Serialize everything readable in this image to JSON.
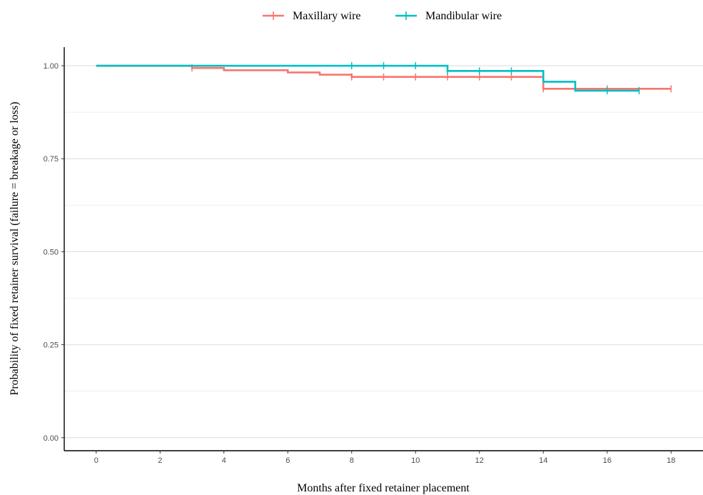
{
  "chart_data": {
    "type": "line",
    "subtype": "step",
    "title": "",
    "xlabel": "Months after fixed retainer placement",
    "ylabel": "Probability of fixed retainer survival (failure = breakage or loss)",
    "xlim": [
      -1,
      19
    ],
    "ylim": [
      -0.035,
      1.05
    ],
    "x_ticks": [
      0,
      2,
      4,
      6,
      8,
      10,
      12,
      14,
      16,
      18
    ],
    "x_tick_labels": [
      "0",
      "2",
      "4",
      "6",
      "8",
      "10",
      "12",
      "14",
      "16",
      "18"
    ],
    "y_ticks": [
      0,
      0.25,
      0.5,
      0.75,
      1
    ],
    "y_tick_labels": [
      "0.00",
      "0.25",
      "0.50",
      "0.75",
      "1.00"
    ],
    "y_minor_ticks": [
      0.125,
      0.375,
      0.625,
      0.875
    ],
    "grid": "horizontal",
    "legend_position": "top",
    "series": [
      {
        "name": "Maxillary wire",
        "color": "#F8766D",
        "steps": [
          {
            "x": 0,
            "y": 1.0
          },
          {
            "x": 3,
            "y": 0.994
          },
          {
            "x": 4,
            "y": 0.988
          },
          {
            "x": 6,
            "y": 0.982
          },
          {
            "x": 7,
            "y": 0.976
          },
          {
            "x": 8,
            "y": 0.97
          },
          {
            "x": 14,
            "y": 0.938
          }
        ],
        "end_x": 18,
        "censored": [
          {
            "x": 3,
            "y": 0.994
          },
          {
            "x": 8,
            "y": 0.97
          },
          {
            "x": 9,
            "y": 0.97
          },
          {
            "x": 10,
            "y": 0.97
          },
          {
            "x": 11,
            "y": 0.97
          },
          {
            "x": 12,
            "y": 0.97
          },
          {
            "x": 13,
            "y": 0.97
          },
          {
            "x": 14,
            "y": 0.938
          },
          {
            "x": 16,
            "y": 0.938
          },
          {
            "x": 18,
            "y": 0.938
          }
        ]
      },
      {
        "name": "Mandibular wire",
        "color": "#00BFC4",
        "steps": [
          {
            "x": 0,
            "y": 1.0
          },
          {
            "x": 11,
            "y": 0.986
          },
          {
            "x": 14,
            "y": 0.957
          },
          {
            "x": 15,
            "y": 0.933
          }
        ],
        "end_x": 17,
        "censored": [
          {
            "x": 8,
            "y": 1.0
          },
          {
            "x": 9,
            "y": 1.0
          },
          {
            "x": 10,
            "y": 1.0
          },
          {
            "x": 11,
            "y": 0.986
          },
          {
            "x": 12,
            "y": 0.986
          },
          {
            "x": 13,
            "y": 0.986
          },
          {
            "x": 16,
            "y": 0.933
          },
          {
            "x": 17,
            "y": 0.933
          }
        ]
      }
    ]
  }
}
